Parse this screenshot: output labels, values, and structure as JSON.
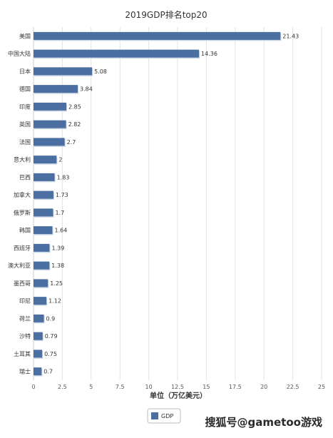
{
  "chart_data": {
    "type": "bar",
    "orientation": "horizontal",
    "title": "2019GDP排名top20",
    "xlabel": "单位（万亿美元）",
    "ylabel": "",
    "xlim": [
      0,
      25
    ],
    "xticks": [
      "0",
      "2.5",
      "5",
      "7.5",
      "10",
      "12.5",
      "15",
      "17.5",
      "20",
      "22.5",
      "25"
    ],
    "grid": "vertical",
    "legend_position": "bottom",
    "series": [
      {
        "name": "GDP",
        "color": "#4a6fa0",
        "categories": [
          "美国",
          "中国大陆",
          "日本",
          "德国",
          "印度",
          "英国",
          "法国",
          "意大利",
          "巴西",
          "加拿大",
          "俄罗斯",
          "韩国",
          "西班牙",
          "澳大利亚",
          "墨西哥",
          "印尼",
          "荷兰",
          "沙特",
          "土耳其",
          "瑞士"
        ],
        "values": [
          21.43,
          14.36,
          5.08,
          3.84,
          2.85,
          2.82,
          2.7,
          2,
          1.83,
          1.73,
          1.7,
          1.64,
          1.39,
          1.38,
          1.25,
          1.12,
          0.9,
          0.79,
          0.75,
          0.7
        ],
        "value_labels": [
          "21.43",
          "14.36",
          "5.08",
          "3.84",
          "2.85",
          "2.82",
          "2.7",
          "2",
          "1.83",
          "1.73",
          "1.7",
          "1.64",
          "1.39",
          "1.38",
          "1.25",
          "1.12",
          "0.9",
          "0.79",
          "0.75",
          "0.7"
        ]
      }
    ]
  },
  "watermark": "搜狐号@gametoo游戏"
}
